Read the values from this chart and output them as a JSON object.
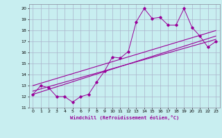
{
  "xlabel": "Windchill (Refroidissement éolien,°C)",
  "bg_color": "#c8eef0",
  "line_color": "#990099",
  "grid_color": "#aab4cc",
  "xlim": [
    -0.5,
    23.5
  ],
  "ylim": [
    11,
    20.4
  ],
  "xticks": [
    0,
    1,
    2,
    3,
    4,
    5,
    6,
    7,
    8,
    9,
    10,
    11,
    12,
    13,
    14,
    15,
    16,
    17,
    18,
    19,
    20,
    21,
    22,
    23
  ],
  "yticks": [
    11,
    12,
    13,
    14,
    15,
    16,
    17,
    18,
    19,
    20
  ],
  "line1_x": [
    0,
    1,
    2,
    3,
    4,
    5,
    6,
    7,
    8,
    9,
    10,
    11,
    12,
    13,
    14,
    15,
    16,
    17,
    18,
    19,
    20,
    21,
    22,
    23
  ],
  "line1_y": [
    12.2,
    13.0,
    12.8,
    12.0,
    12.0,
    11.5,
    12.0,
    12.2,
    13.3,
    14.3,
    15.6,
    15.5,
    16.1,
    18.8,
    20.0,
    19.1,
    19.2,
    18.5,
    18.5,
    20.0,
    18.3,
    17.5,
    16.5,
    17.0
  ],
  "line2_x": [
    0,
    23
  ],
  "line2_y": [
    12.5,
    17.2
  ],
  "line3_x": [
    0,
    23
  ],
  "line3_y": [
    13.0,
    18.0
  ],
  "line4_x": [
    0,
    23
  ],
  "line4_y": [
    12.2,
    17.5
  ]
}
